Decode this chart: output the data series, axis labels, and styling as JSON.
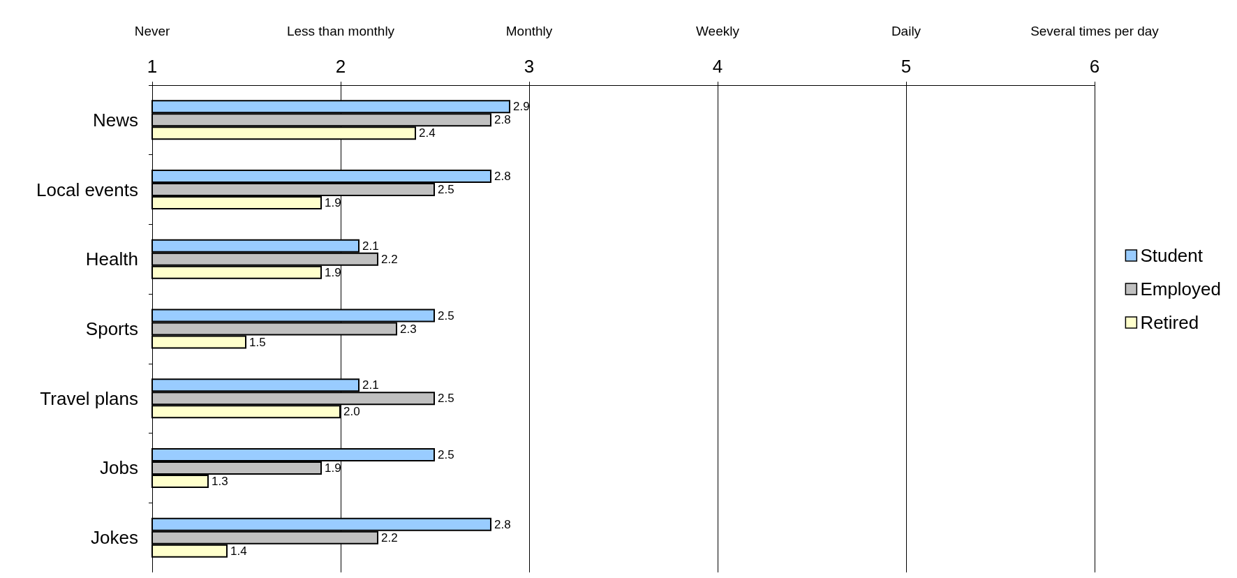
{
  "chart_data": {
    "type": "bar",
    "orientation": "horizontal",
    "categories": [
      "News",
      "Local events",
      "Health",
      "Sports",
      "Travel plans",
      "Jobs",
      "Jokes"
    ],
    "series": [
      {
        "name": "Student",
        "color": "#99ccff",
        "values": [
          2.9,
          2.8,
          2.1,
          2.5,
          2.1,
          2.5,
          2.8
        ],
        "value_labels": [
          "2.9",
          "2.8",
          "2.1",
          "2.5",
          "2.1",
          "2.5",
          "2.8"
        ]
      },
      {
        "name": "Employed",
        "color": "#c0c0c0",
        "values": [
          2.8,
          2.5,
          2.2,
          2.3,
          2.5,
          1.9,
          2.2
        ],
        "value_labels": [
          "2.8",
          "2.5",
          "2.2",
          "2.3",
          "2.5",
          "1.9",
          "2.2"
        ]
      },
      {
        "name": "Retired",
        "color": "#ffffcc",
        "values": [
          2.4,
          1.9,
          1.9,
          1.5,
          2.0,
          1.3,
          1.4
        ],
        "value_labels": [
          "2.4",
          "1.9",
          "1.9",
          "1.5",
          "2.0",
          "1.3",
          "1.4"
        ]
      }
    ],
    "xlim": [
      1,
      6
    ],
    "xticks": [
      1,
      2,
      3,
      4,
      5,
      6
    ],
    "annotations": [
      "Never",
      "Less than monthly",
      "Monthly",
      "Weekly",
      "Daily",
      "Several times per day"
    ],
    "grid": "x",
    "legend": "right"
  }
}
